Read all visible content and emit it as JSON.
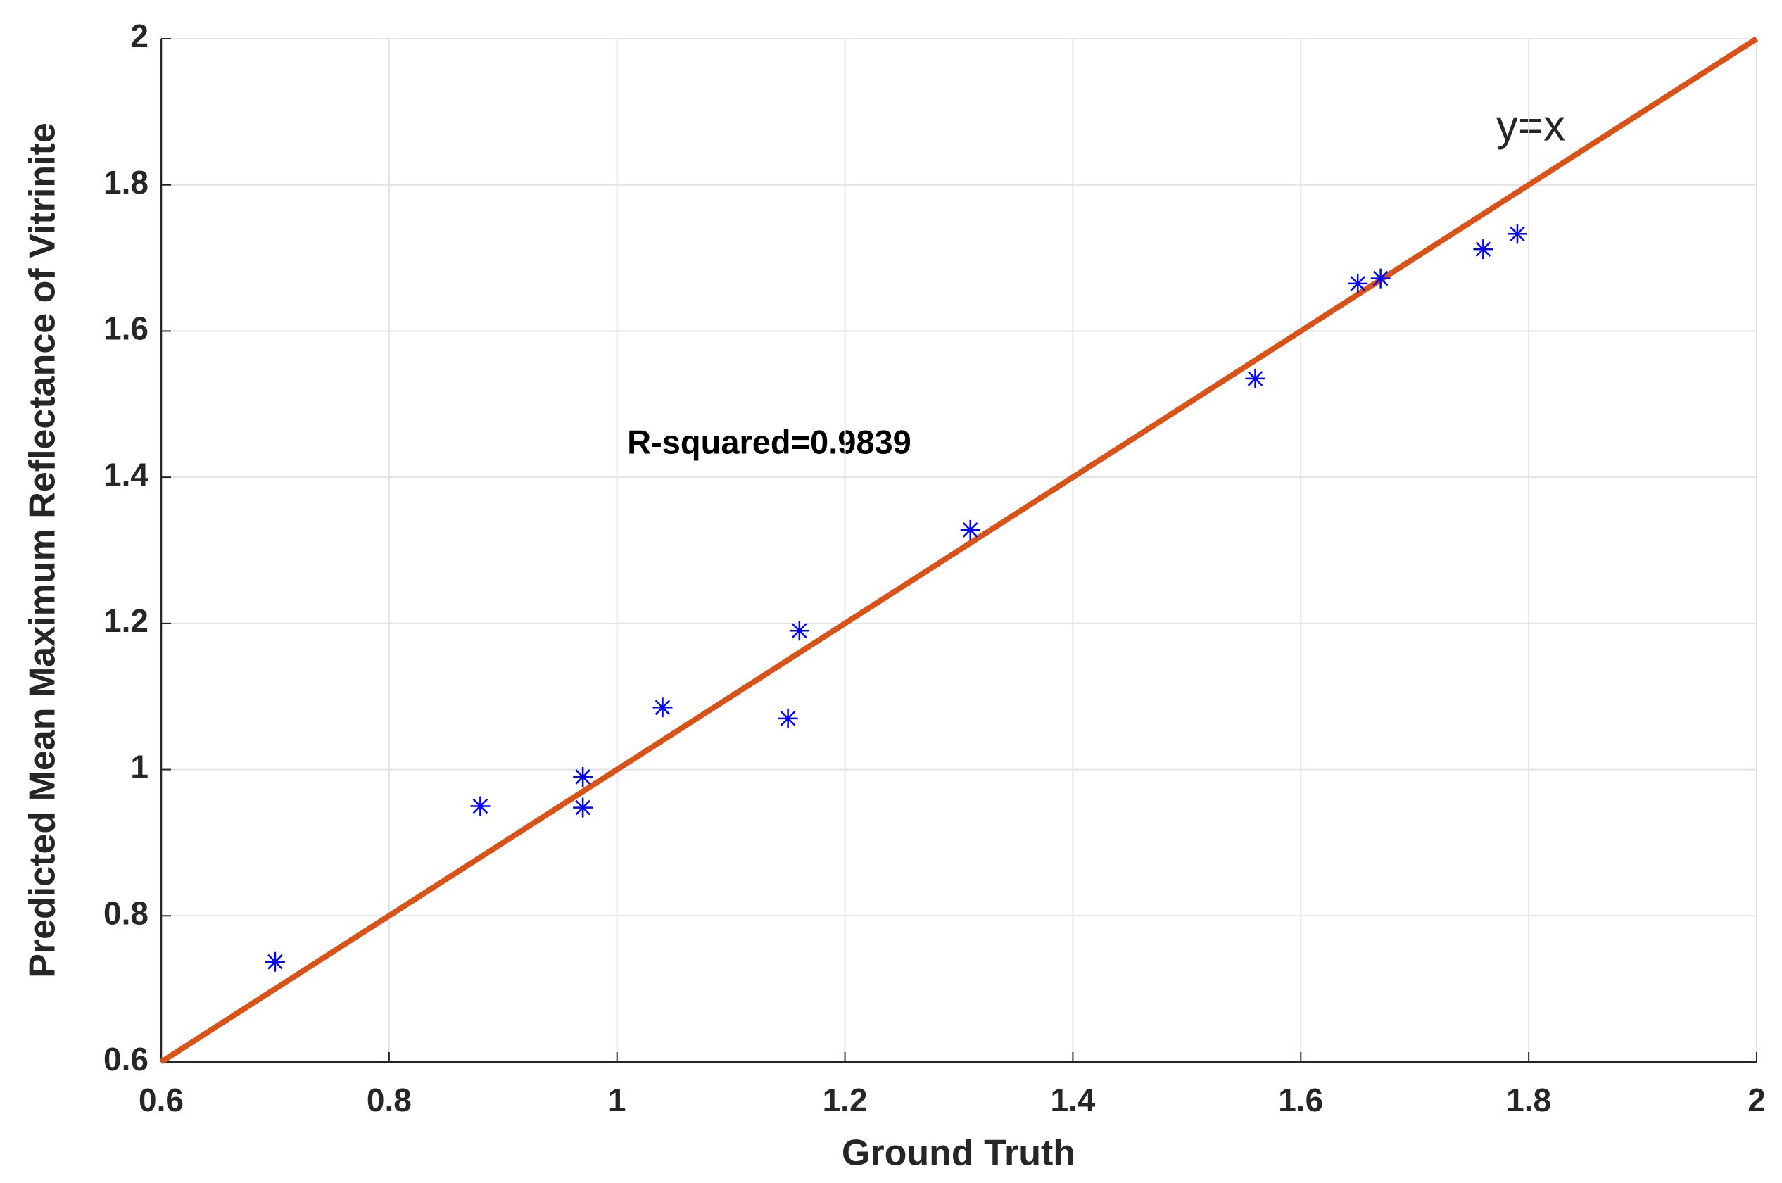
{
  "chart_data": {
    "type": "scatter",
    "xlabel": "Ground Truth",
    "ylabel": "Predicted Mean Maximum Reflectance of Vitrinite",
    "annotations": [
      "y=x",
      "R-squared=0.9839"
    ],
    "xlim": [
      0.6,
      2
    ],
    "ylim": [
      0.6,
      2
    ],
    "xticks": [
      0.6,
      0.8,
      1,
      1.2,
      1.4,
      1.6,
      1.8,
      2
    ],
    "yticks": [
      0.6,
      0.8,
      1,
      1.2,
      1.4,
      1.6,
      1.8,
      2
    ],
    "grid": true,
    "series": [
      {
        "color": "#0000ff",
        "x": [
          0.7,
          0.88,
          0.97,
          0.97,
          1.04,
          1.15,
          1.16,
          1.31,
          1.56,
          1.65,
          1.67,
          1.76,
          1.79
        ],
        "values": [
          0.737,
          0.95,
          0.99,
          0.948,
          1.085,
          1.07,
          1.19,
          1.328,
          1.535,
          1.665,
          1.672,
          1.712,
          1.733
        ]
      }
    ],
    "reference_line": {
      "color": "#d95319",
      "x": [
        0.6,
        2
      ],
      "values": [
        0.6,
        2
      ]
    }
  }
}
